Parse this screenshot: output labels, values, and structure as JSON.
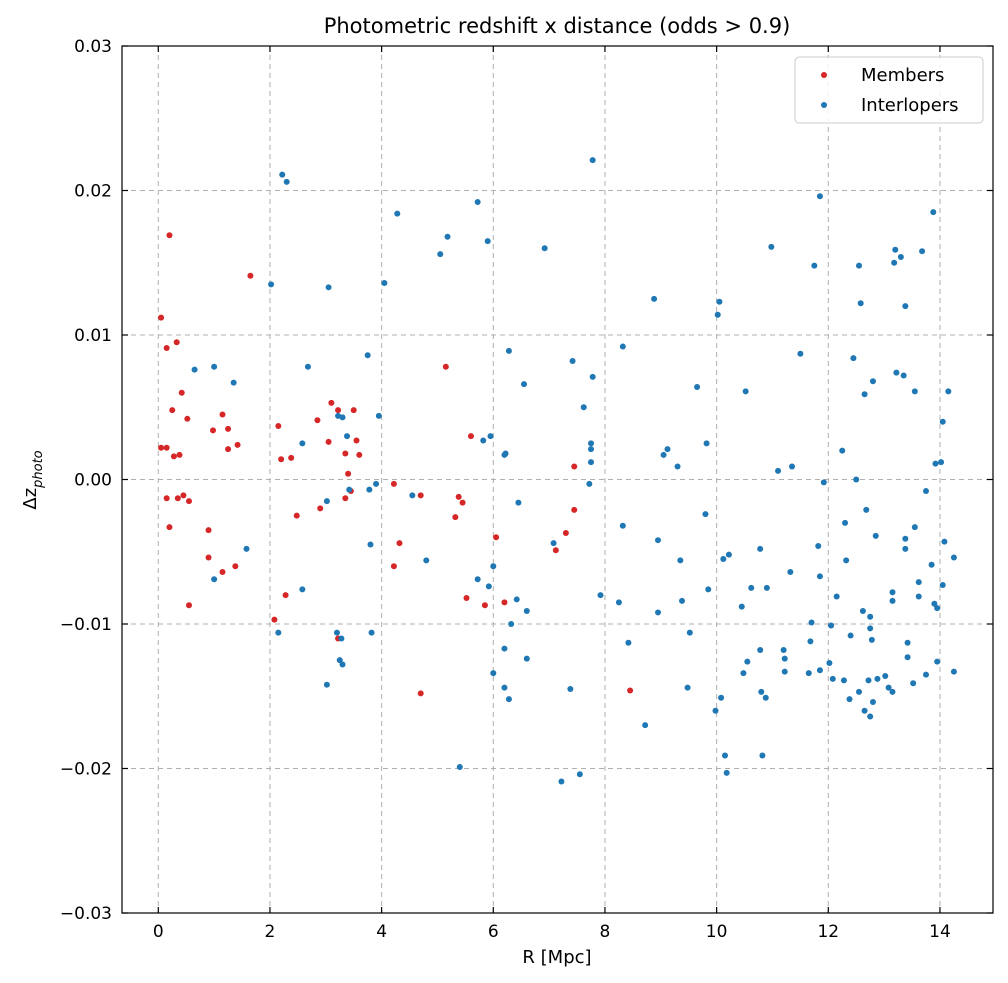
{
  "chart_data": {
    "type": "scatter",
    "title": "Photometric redshift x distance (odds > 0.9)",
    "xlabel": "R [Mpc]",
    "ylabel": "Δz",
    "ylabel_sub": "photo",
    "xlim": [
      -0.65,
      14.95
    ],
    "ylim": [
      -0.03,
      0.03
    ],
    "x_ticks": [
      0,
      2,
      4,
      6,
      8,
      10,
      12,
      14
    ],
    "x_tick_labels": [
      "0",
      "2",
      "4",
      "6",
      "8",
      "10",
      "12",
      "14"
    ],
    "y_ticks": [
      -0.03,
      -0.02,
      -0.01,
      0.0,
      0.01,
      0.02,
      0.03
    ],
    "y_tick_labels": [
      "−0.03",
      "−0.02",
      "−0.01",
      "0.00",
      "0.01",
      "0.02",
      "0.03"
    ],
    "grid": true,
    "legend_position": "top-right",
    "series": [
      {
        "name": "Members",
        "color": "#d62728",
        "points": [
          [
            0.05,
            0.0112
          ],
          [
            0.2,
            0.0169
          ],
          [
            0.15,
            0.0091
          ],
          [
            0.33,
            0.0095
          ],
          [
            0.42,
            0.006
          ],
          [
            0.25,
            0.0048
          ],
          [
            0.52,
            0.0042
          ],
          [
            0.05,
            0.0022
          ],
          [
            0.15,
            0.0022
          ],
          [
            0.28,
            0.0016
          ],
          [
            0.38,
            0.0017
          ],
          [
            0.15,
            -0.0013
          ],
          [
            0.35,
            -0.0013
          ],
          [
            0.45,
            -0.0011
          ],
          [
            0.55,
            -0.0015
          ],
          [
            0.2,
            -0.0033
          ],
          [
            0.55,
            -0.0087
          ],
          [
            0.9,
            -0.0035
          ],
          [
            0.9,
            -0.0054
          ],
          [
            0.98,
            0.0034
          ],
          [
            1.15,
            0.0045
          ],
          [
            1.25,
            0.0035
          ],
          [
            1.25,
            0.0021
          ],
          [
            1.42,
            0.0024
          ],
          [
            1.15,
            -0.0064
          ],
          [
            1.38,
            -0.006
          ],
          [
            1.65,
            0.0141
          ],
          [
            2.08,
            -0.0097
          ],
          [
            2.15,
            0.0037
          ],
          [
            2.2,
            0.0014
          ],
          [
            2.28,
            -0.008
          ],
          [
            2.38,
            0.0015
          ],
          [
            2.48,
            -0.0025
          ],
          [
            2.85,
            0.0041
          ],
          [
            2.9,
            -0.002
          ],
          [
            3.05,
            0.0026
          ],
          [
            3.1,
            0.0053
          ],
          [
            3.22,
            0.0048
          ],
          [
            3.22,
            -0.011
          ],
          [
            3.35,
            0.0018
          ],
          [
            3.35,
            -0.0013
          ],
          [
            3.4,
            0.0004
          ],
          [
            3.45,
            -0.0008
          ],
          [
            3.5,
            0.0048
          ],
          [
            3.55,
            0.0027
          ],
          [
            3.6,
            0.0017
          ],
          [
            4.22,
            -0.006
          ],
          [
            4.22,
            -0.0003
          ],
          [
            4.32,
            -0.0044
          ],
          [
            4.7,
            -0.0011
          ],
          [
            4.7,
            -0.0148
          ],
          [
            5.15,
            0.0078
          ],
          [
            5.32,
            -0.0026
          ],
          [
            5.38,
            -0.0012
          ],
          [
            5.45,
            -0.0016
          ],
          [
            5.52,
            -0.0082
          ],
          [
            5.6,
            0.003
          ],
          [
            5.85,
            -0.0087
          ],
          [
            6.05,
            -0.004
          ],
          [
            6.2,
            -0.0085
          ],
          [
            7.12,
            -0.0049
          ],
          [
            7.3,
            -0.0037
          ],
          [
            7.45,
            -0.0021
          ],
          [
            7.45,
            0.0009
          ],
          [
            8.45,
            -0.0146
          ]
        ]
      },
      {
        "name": "Interlopers",
        "color": "#1f77b4",
        "points": [
          [
            0.65,
            0.0076
          ],
          [
            1.0,
            0.0078
          ],
          [
            1.35,
            0.0067
          ],
          [
            1.0,
            -0.0069
          ],
          [
            1.58,
            -0.0048
          ],
          [
            2.02,
            0.0135
          ],
          [
            2.15,
            -0.0106
          ],
          [
            2.22,
            0.0211
          ],
          [
            2.3,
            0.0206
          ],
          [
            2.58,
            0.0025
          ],
          [
            2.68,
            0.0078
          ],
          [
            2.58,
            -0.0076
          ],
          [
            3.05,
            0.0133
          ],
          [
            3.02,
            -0.0015
          ],
          [
            3.02,
            -0.0142
          ],
          [
            3.2,
            -0.0106
          ],
          [
            3.22,
            0.0044
          ],
          [
            3.3,
            0.0043
          ],
          [
            3.38,
            0.003
          ],
          [
            3.42,
            -0.0007
          ],
          [
            3.25,
            -0.0125
          ],
          [
            3.3,
            -0.0128
          ],
          [
            3.28,
            -0.011
          ],
          [
            3.75,
            0.0086
          ],
          [
            3.8,
            -0.0045
          ],
          [
            3.78,
            -0.0007
          ],
          [
            3.82,
            -0.0106
          ],
          [
            3.9,
            -0.0003
          ],
          [
            3.95,
            0.0044
          ],
          [
            4.05,
            0.0136
          ],
          [
            4.28,
            0.0184
          ],
          [
            4.55,
            -0.0011
          ],
          [
            4.8,
            -0.0056
          ],
          [
            5.05,
            0.0156
          ],
          [
            5.18,
            0.0168
          ],
          [
            5.4,
            -0.0199
          ],
          [
            5.72,
            0.0192
          ],
          [
            5.72,
            -0.0069
          ],
          [
            5.82,
            0.0027
          ],
          [
            5.9,
            0.0165
          ],
          [
            5.95,
            0.003
          ],
          [
            5.92,
            -0.0074
          ],
          [
            6.0,
            -0.006
          ],
          [
            6.0,
            -0.0134
          ],
          [
            6.2,
            0.0017
          ],
          [
            6.2,
            -0.0117
          ],
          [
            6.22,
            0.0018
          ],
          [
            6.28,
            0.0089
          ],
          [
            6.2,
            -0.0144
          ],
          [
            6.28,
            -0.0152
          ],
          [
            6.32,
            -0.01
          ],
          [
            6.42,
            -0.0083
          ],
          [
            6.45,
            -0.0016
          ],
          [
            6.55,
            0.0066
          ],
          [
            6.6,
            -0.0091
          ],
          [
            6.6,
            -0.0124
          ],
          [
            6.92,
            0.016
          ],
          [
            7.08,
            -0.0044
          ],
          [
            7.22,
            -0.0209
          ],
          [
            7.38,
            -0.0145
          ],
          [
            7.42,
            0.0082
          ],
          [
            7.55,
            -0.0204
          ],
          [
            7.62,
            0.005
          ],
          [
            7.72,
            -0.0003
          ],
          [
            7.75,
            0.0025
          ],
          [
            7.75,
            0.0021
          ],
          [
            7.75,
            0.0012
          ],
          [
            7.78,
            0.0071
          ],
          [
            7.78,
            0.0221
          ],
          [
            7.92,
            -0.008
          ],
          [
            8.25,
            -0.0085
          ],
          [
            8.32,
            0.0092
          ],
          [
            8.32,
            -0.0032
          ],
          [
            8.42,
            -0.0113
          ],
          [
            8.72,
            -0.017
          ],
          [
            8.88,
            0.0125
          ],
          [
            8.95,
            -0.0042
          ],
          [
            8.95,
            -0.0092
          ],
          [
            9.05,
            0.0017
          ],
          [
            9.12,
            0.0021
          ],
          [
            9.3,
            0.0009
          ],
          [
            9.35,
            -0.0056
          ],
          [
            9.38,
            -0.0084
          ],
          [
            9.48,
            -0.0144
          ],
          [
            9.52,
            -0.0106
          ],
          [
            9.65,
            0.0064
          ],
          [
            9.8,
            -0.0024
          ],
          [
            9.82,
            0.0025
          ],
          [
            9.85,
            -0.0076
          ],
          [
            9.98,
            -0.016
          ],
          [
            10.02,
            0.0114
          ],
          [
            10.05,
            0.0123
          ],
          [
            10.08,
            -0.0151
          ],
          [
            10.12,
            -0.0055
          ],
          [
            10.15,
            -0.0191
          ],
          [
            10.18,
            -0.0203
          ],
          [
            10.22,
            -0.0052
          ],
          [
            10.45,
            -0.0088
          ],
          [
            10.48,
            -0.0134
          ],
          [
            10.52,
            0.0061
          ],
          [
            10.55,
            -0.0126
          ],
          [
            10.62,
            -0.0075
          ],
          [
            10.78,
            -0.0118
          ],
          [
            10.78,
            -0.0048
          ],
          [
            10.8,
            -0.0147
          ],
          [
            10.82,
            -0.0191
          ],
          [
            10.88,
            -0.0151
          ],
          [
            10.9,
            -0.0075
          ],
          [
            10.98,
            0.0161
          ],
          [
            11.1,
            0.0006
          ],
          [
            11.2,
            -0.0118
          ],
          [
            11.22,
            -0.0124
          ],
          [
            11.22,
            -0.0133
          ],
          [
            11.32,
            -0.0064
          ],
          [
            11.35,
            0.0009
          ],
          [
            11.5,
            0.0087
          ],
          [
            11.65,
            -0.0134
          ],
          [
            11.68,
            -0.0112
          ],
          [
            11.7,
            -0.0099
          ],
          [
            11.75,
            0.0148
          ],
          [
            11.82,
            -0.0046
          ],
          [
            11.85,
            0.0196
          ],
          [
            11.85,
            -0.0067
          ],
          [
            11.85,
            -0.0132
          ],
          [
            11.92,
            -0.0002
          ],
          [
            12.02,
            -0.0127
          ],
          [
            12.05,
            -0.0101
          ],
          [
            12.08,
            -0.0138
          ],
          [
            12.15,
            -0.0081
          ],
          [
            12.25,
            0.002
          ],
          [
            12.28,
            -0.0139
          ],
          [
            12.3,
            -0.003
          ],
          [
            12.32,
            -0.0056
          ],
          [
            12.38,
            -0.0152
          ],
          [
            12.4,
            -0.0108
          ],
          [
            12.45,
            0.0084
          ],
          [
            12.5,
            0.0
          ],
          [
            12.55,
            0.0148
          ],
          [
            12.55,
            -0.0147
          ],
          [
            12.58,
            0.0122
          ],
          [
            12.62,
            -0.0091
          ],
          [
            12.65,
            -0.016
          ],
          [
            12.65,
            0.0059
          ],
          [
            12.68,
            -0.0021
          ],
          [
            12.72,
            -0.0139
          ],
          [
            12.75,
            -0.0095
          ],
          [
            12.75,
            -0.0103
          ],
          [
            12.75,
            -0.0164
          ],
          [
            12.78,
            -0.0111
          ],
          [
            12.8,
            0.0068
          ],
          [
            12.8,
            -0.0154
          ],
          [
            12.85,
            -0.0039
          ],
          [
            12.88,
            -0.0138
          ],
          [
            13.02,
            -0.0136
          ],
          [
            13.08,
            -0.0144
          ],
          [
            13.15,
            -0.0078
          ],
          [
            13.15,
            -0.0084
          ],
          [
            13.15,
            -0.0147
          ],
          [
            13.18,
            0.015
          ],
          [
            13.2,
            0.0159
          ],
          [
            13.22,
            0.0074
          ],
          [
            13.3,
            0.0154
          ],
          [
            13.35,
            0.0072
          ],
          [
            13.38,
            0.012
          ],
          [
            13.38,
            -0.0041
          ],
          [
            13.38,
            -0.0048
          ],
          [
            13.42,
            -0.0113
          ],
          [
            13.42,
            -0.0123
          ],
          [
            13.52,
            -0.0141
          ],
          [
            13.55,
            0.0061
          ],
          [
            13.55,
            -0.0033
          ],
          [
            13.62,
            -0.0071
          ],
          [
            13.62,
            -0.0081
          ],
          [
            13.68,
            0.0158
          ],
          [
            13.75,
            -0.0008
          ],
          [
            13.75,
            -0.0135
          ],
          [
            13.85,
            -0.0059
          ],
          [
            13.88,
            0.0185
          ],
          [
            13.9,
            -0.0086
          ],
          [
            13.92,
            0.0011
          ],
          [
            13.95,
            -0.0089
          ],
          [
            13.95,
            -0.0126
          ],
          [
            14.02,
            0.0012
          ],
          [
            14.05,
            -0.0073
          ],
          [
            14.05,
            0.004
          ],
          [
            14.08,
            -0.0043
          ],
          [
            14.15,
            0.0061
          ],
          [
            14.25,
            -0.0054
          ],
          [
            14.25,
            -0.0133
          ]
        ]
      }
    ]
  }
}
